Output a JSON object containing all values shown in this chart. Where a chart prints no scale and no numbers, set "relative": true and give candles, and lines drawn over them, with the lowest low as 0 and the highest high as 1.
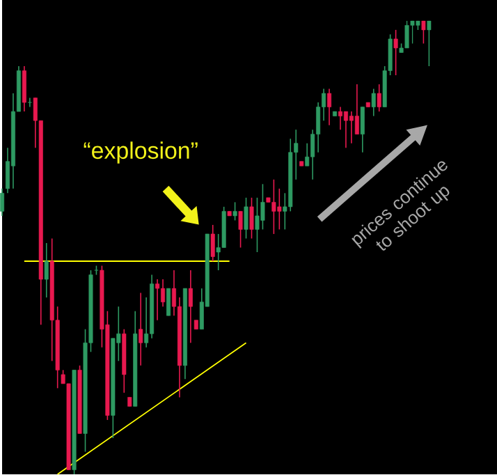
{
  "chart_data": {
    "type": "candlestick",
    "relative": true,
    "categories": [
      null,
      null,
      null,
      null,
      null,
      null,
      null,
      null,
      null,
      null,
      null,
      null,
      null,
      null,
      null,
      null,
      null,
      null,
      null,
      null,
      null,
      null,
      null,
      null,
      null,
      null,
      null,
      null,
      null,
      null,
      null,
      null,
      null,
      null,
      null,
      null,
      null,
      null,
      null,
      null,
      null,
      null,
      null,
      null,
      null,
      null,
      null,
      null,
      null,
      null,
      null,
      null,
      null,
      null,
      null,
      null,
      null,
      null,
      null,
      null,
      null,
      null,
      null,
      null,
      null,
      null,
      null,
      null,
      null,
      null,
      null,
      null,
      null,
      null,
      null,
      null,
      null,
      null
    ],
    "ohlc": [
      [
        0.58,
        0.63,
        0.57,
        0.62
      ],
      [
        0.63,
        0.72,
        0.62,
        0.69
      ],
      [
        0.68,
        0.84,
        0.63,
        0.8
      ],
      [
        0.8,
        0.9,
        0.8,
        0.89
      ],
      [
        0.89,
        0.9,
        0.8,
        0.82
      ],
      [
        0.82,
        0.83,
        0.81,
        0.82
      ],
      [
        0.83,
        0.83,
        0.72,
        0.78
      ],
      [
        0.78,
        0.78,
        0.33,
        0.43
      ],
      [
        0.43,
        0.51,
        0.39,
        0.47
      ],
      [
        0.47,
        0.52,
        0.25,
        0.34
      ],
      [
        0.34,
        0.37,
        0.19,
        0.23
      ],
      [
        0.22,
        0.23,
        0.2,
        0.2
      ],
      [
        0.2,
        0.2,
        0.01,
        0.01
      ],
      [
        0.01,
        0.23,
        0,
        0.23
      ],
      [
        0.23,
        0.24,
        0.09,
        0.09
      ],
      [
        0.09,
        0.32,
        0.05,
        0.29
      ],
      [
        0.29,
        0.45,
        0.27,
        0.44
      ],
      [
        0.45,
        0.46,
        0.44,
        0.45
      ],
      [
        0.45,
        0.46,
        0.28,
        0.32
      ],
      [
        0.33,
        0.36,
        0.12,
        0.13
      ],
      [
        0.13,
        0.3,
        0.08,
        0.3
      ],
      [
        0.29,
        0.37,
        0.25,
        0.31
      ],
      [
        0.31,
        0.32,
        0.18,
        0.22
      ],
      [
        0.17,
        0.17,
        0.15,
        0.15
      ],
      [
        0.15,
        0.36,
        0.15,
        0.31
      ],
      [
        0.32,
        0.4,
        0.24,
        0.29
      ],
      [
        0.29,
        0.39,
        0.28,
        0.31
      ],
      [
        0.31,
        0.44,
        0.3,
        0.42
      ],
      [
        0.42,
        0.43,
        0.34,
        0.41
      ],
      [
        0.41,
        0.43,
        0.37,
        0.38
      ],
      [
        0.35,
        0.41,
        0.35,
        0.41
      ],
      [
        0.41,
        0.45,
        0.35,
        0.37
      ],
      [
        0.37,
        0.39,
        0.17,
        0.24
      ],
      [
        0.24,
        0.41,
        0.21,
        0.41
      ],
      [
        0.41,
        0.45,
        0.29,
        0.37
      ],
      [
        0.34,
        0.34,
        0.32,
        0.32
      ],
      [
        0.32,
        0.41,
        0.32,
        0.38
      ],
      [
        0.37,
        0.53,
        0.37,
        0.53
      ],
      [
        0.53,
        0.55,
        0.47,
        0.48
      ],
      [
        0.49,
        0.53,
        0.45,
        0.5
      ],
      [
        0.5,
        0.59,
        0.5,
        0.58
      ],
      [
        0.58,
        0.58,
        0.57,
        0.57
      ],
      [
        0.57,
        0.6,
        0.56,
        0.58
      ],
      [
        0.58,
        0.58,
        0.5,
        0.54
      ],
      [
        0.54,
        0.61,
        0.52,
        0.59
      ],
      [
        0.59,
        0.61,
        0.52,
        0.54
      ],
      [
        0.54,
        0.61,
        0.49,
        0.57
      ],
      [
        0.56,
        0.64,
        0.54,
        0.6
      ],
      [
        0.61,
        0.61,
        0.6,
        0.6
      ],
      [
        0.6,
        0.65,
        0.53,
        0.58
      ],
      [
        0.59,
        0.63,
        0.54,
        0.58
      ],
      [
        0.58,
        0.62,
        0.54,
        0.59
      ],
      [
        0.59,
        0.74,
        0.58,
        0.71
      ],
      [
        0.71,
        0.76,
        0.65,
        0.73
      ],
      [
        0.69,
        0.69,
        0.68,
        0.68
      ],
      [
        0.68,
        0.73,
        0.68,
        0.7
      ],
      [
        0.7,
        0.76,
        0.65,
        0.75
      ],
      [
        0.75,
        0.82,
        0.71,
        0.81
      ],
      [
        0.81,
        0.85,
        0.78,
        0.84
      ],
      [
        0.84,
        0.85,
        0.77,
        0.81
      ],
      [
        0.79,
        0.8,
        0.79,
        0.8
      ],
      [
        0.8,
        0.81,
        0.76,
        0.79
      ],
      [
        0.8,
        0.8,
        0.72,
        0.78
      ],
      [
        0.79,
        0.8,
        0.73,
        0.78
      ],
      [
        0.79,
        0.86,
        0.75,
        0.75
      ],
      [
        0.75,
        0.81,
        0.71,
        0.81
      ],
      [
        0.82,
        0.82,
        0.81,
        0.81
      ],
      [
        0.81,
        0.85,
        0.79,
        0.84
      ],
      [
        0.84,
        0.86,
        0.8,
        0.81
      ],
      [
        0.81,
        0.9,
        0.81,
        0.89
      ],
      [
        0.89,
        0.97,
        0.88,
        0.96
      ],
      [
        0.96,
        0.98,
        0.88,
        0.94
      ],
      [
        0.93,
        0.95,
        0.93,
        0.94
      ],
      [
        0.94,
        1.0,
        0.94,
        0.99
      ],
      [
        0.99,
        1.0,
        0.95,
        1.0
      ],
      [
        0.99,
        1.0,
        0.98,
        1.0
      ],
      [
        1.0,
        1.0,
        0.95,
        0.98
      ],
      [
        0.98,
        1.0,
        0.9,
        1.0
      ]
    ],
    "colors": [
      "#2e9a62",
      "#2e9a62",
      "#2e9a62",
      "#2e9a62",
      "#e8194f",
      "#2e9a62",
      "#e8194f",
      "#e8194f",
      "#2e9a62",
      "#e8194f",
      "#e8194f",
      "#e8194f",
      "#e8194f",
      "#2e9a62",
      "#e8194f",
      "#2e9a62",
      "#2e9a62",
      "#2e9a62",
      "#e8194f",
      "#e8194f",
      "#2e9a62",
      "#2e9a62",
      "#e8194f",
      "#e8194f",
      "#2e9a62",
      "#e8194f",
      "#2e9a62",
      "#2e9a62",
      "#e8194f",
      "#e8194f",
      "#2e9a62",
      "#e8194f",
      "#e8194f",
      "#2e9a62",
      "#e8194f",
      "#e8194f",
      "#2e9a62",
      "#2e9a62",
      "#e8194f",
      "#2e9a62",
      "#2e9a62",
      "#e8194f",
      "#2e9a62",
      "#e8194f",
      "#2e9a62",
      "#e8194f",
      "#2e9a62",
      "#2e9a62",
      "#e8194f",
      "#e8194f",
      "#e8194f",
      "#2e9a62",
      "#2e9a62",
      "#2e9a62",
      "#e8194f",
      "#2e9a62",
      "#2e9a62",
      "#2e9a62",
      "#2e9a62",
      "#e8194f",
      "#2e9a62",
      "#e8194f",
      "#e8194f",
      "#e8194f",
      "#e8194f",
      "#2e9a62",
      "#e8194f",
      "#2e9a62",
      "#e8194f",
      "#2e9a62",
      "#2e9a62",
      "#e8194f",
      "#2e9a62",
      "#2e9a62",
      "#2e9a62",
      "#2e9a62",
      "#e8194f",
      "#2e9a62"
    ],
    "series": [
      {
        "type": "line",
        "values": [
          null,
          null,
          null,
          null,
          0.47,
          null,
          null,
          null,
          null,
          null,
          null,
          null,
          null,
          null,
          null,
          null,
          null,
          null,
          null,
          null,
          null,
          null,
          null,
          null,
          null,
          null,
          null,
          null,
          null,
          null,
          null,
          null,
          null,
          null,
          null,
          null,
          null,
          null,
          null,
          null,
          null,
          0.47,
          null,
          null,
          null,
          null,
          null,
          null,
          null,
          null,
          null,
          null,
          null,
          null,
          null,
          null,
          null,
          null,
          null,
          null,
          null,
          null,
          null,
          null,
          null,
          null,
          null,
          null,
          null,
          null,
          null,
          null,
          null,
          null,
          null,
          null,
          null,
          null
        ],
        "color": "#ffff00"
      },
      {
        "type": "line",
        "values": [
          null,
          null,
          null,
          null,
          null,
          null,
          null,
          null,
          null,
          null,
          0.0,
          null,
          null,
          null,
          null,
          null,
          null,
          null,
          null,
          null,
          null,
          null,
          null,
          null,
          null,
          null,
          null,
          null,
          null,
          null,
          null,
          null,
          null,
          null,
          null,
          null,
          null,
          null,
          null,
          null,
          null,
          null,
          null,
          null,
          0.29,
          null,
          null,
          null,
          null,
          null,
          null,
          null,
          null,
          null,
          null,
          null,
          null,
          null,
          null,
          null,
          null,
          null,
          null,
          null,
          null,
          null,
          null,
          null,
          null,
          null,
          null,
          null,
          null,
          null,
          null,
          null,
          null,
          null
        ],
        "color": "#ffff00"
      }
    ],
    "annotations": [
      "“explosion”",
      "prices continue to shoot up"
    ]
  }
}
